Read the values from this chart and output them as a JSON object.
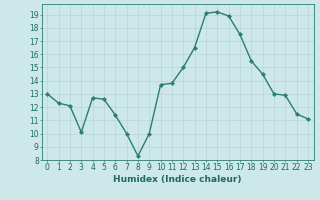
{
  "x": [
    0,
    1,
    2,
    3,
    4,
    5,
    6,
    7,
    8,
    9,
    10,
    11,
    12,
    13,
    14,
    15,
    16,
    17,
    18,
    19,
    20,
    21,
    22,
    23
  ],
  "y": [
    13,
    12.3,
    12.1,
    10.1,
    12.7,
    12.6,
    11.4,
    10.0,
    8.3,
    10.0,
    13.7,
    13.8,
    15.0,
    16.5,
    19.1,
    19.2,
    18.9,
    17.5,
    15.5,
    14.5,
    13.0,
    12.9,
    11.5,
    11.1
  ],
  "line_color": "#2d7d6e",
  "marker": "D",
  "marker_size": 2.2,
  "bg_color": "#cce8e8",
  "grid_color": "#b8d4d4",
  "xlabel": "Humidex (Indice chaleur)",
  "xlim": [
    -0.5,
    23.5
  ],
  "ylim": [
    8,
    19.8
  ],
  "yticks": [
    8,
    9,
    10,
    11,
    12,
    13,
    14,
    15,
    16,
    17,
    18,
    19
  ],
  "xticks": [
    0,
    1,
    2,
    3,
    4,
    5,
    6,
    7,
    8,
    9,
    10,
    11,
    12,
    13,
    14,
    15,
    16,
    17,
    18,
    19,
    20,
    21,
    22,
    23
  ],
  "tick_label_color": "#1e6b5e",
  "xlabel_color": "#1e6b5e",
  "font_size": 5.5,
  "xlabel_font_size": 6.5,
  "linewidth": 1.0
}
